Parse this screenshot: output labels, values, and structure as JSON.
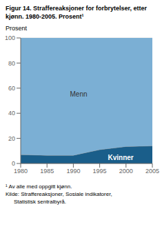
{
  "chart_data": {
    "type": "area",
    "stacked": true,
    "title": "Figur 14. Straffereaksjoner for forbrytelser, etter kjønn. 1980-2005. Prosent¹",
    "ylabel": "Prosent",
    "x": [
      1980,
      1985,
      1990,
      1995,
      2000,
      2005
    ],
    "series": [
      {
        "name": "Kvinner",
        "color": "#1a5e8a",
        "values": [
          7.0,
          6.5,
          6.5,
          11.0,
          13.5,
          14.0
        ]
      },
      {
        "name": "Menn",
        "color": "#7bafd4",
        "values": [
          93.0,
          93.5,
          93.5,
          89.0,
          86.5,
          86.0
        ]
      }
    ],
    "annotations": [
      {
        "text": "Menn",
        "x": 1991,
        "y": 55
      },
      {
        "text": "Kvinner",
        "x": 1999,
        "y": 4.5
      }
    ],
    "footnotes": [
      "¹ Av alle med oppgitt kjønn.",
      "Kilde: Straffereaksjoner, Sosiale indikatorer,",
      "Statistisk sentralbyrå."
    ],
    "xlim": [
      1980,
      2005
    ],
    "ylim": [
      0,
      100
    ],
    "xticks": [
      1980,
      1985,
      1990,
      1995,
      2000,
      2005
    ],
    "yticks": [
      0,
      20,
      40,
      60,
      80,
      100
    ],
    "grid": true
  }
}
